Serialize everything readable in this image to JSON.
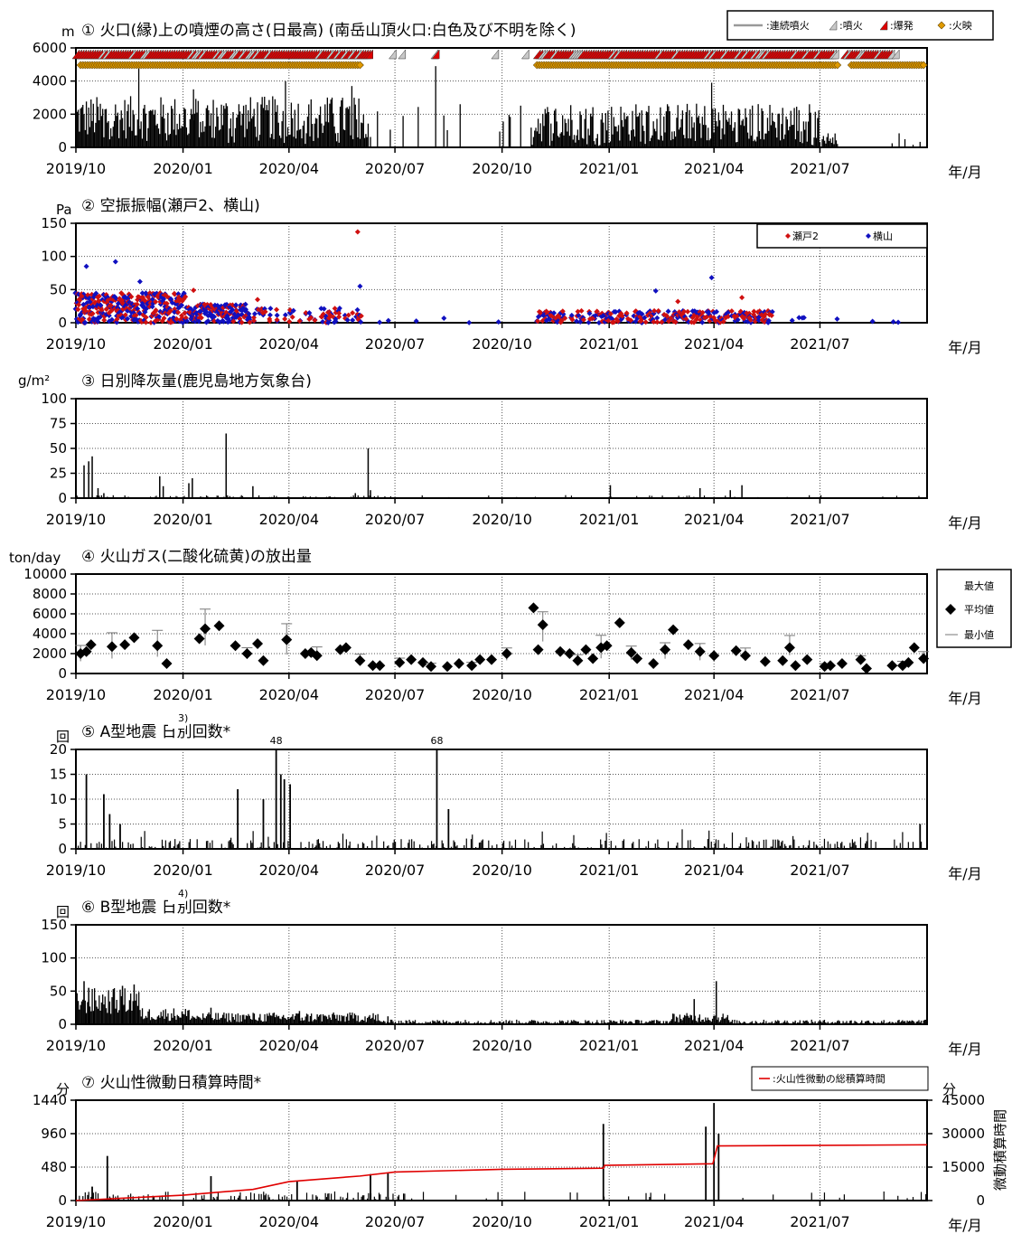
{
  "panels": [
    {
      "title": "① 火口(縁)上の噴煙の高さ(日最高) (南岳山頂火口:白色及び不明を除く)",
      "unit": "m"
    },
    {
      "title": "② 空振振幅(瀬戸2、横山)",
      "unit": "Pa"
    },
    {
      "title": "③ 日別降灰量(鹿児島地方気象台)",
      "unit": "g/m²"
    },
    {
      "title": "④ 火山ガス(二酸化硫黄)の放出量",
      "unit": "ton/day"
    },
    {
      "title": "⑤ A型地震 日別回数*",
      "sup": "3)",
      "unit": "回"
    },
    {
      "title": "⑥ B型地震 日別回数*",
      "sup": "4)",
      "unit": "回"
    },
    {
      "title": "⑦ 火山性微動日積算時間*",
      "unit": "分",
      "unit_right": "分",
      "right_axis_title": "微動積算時間"
    }
  ],
  "x_ticks": [
    "2019/10",
    "2020/01",
    "2020/04",
    "2020/07",
    "2020/10",
    "2021/01",
    "2021/04",
    "2021/07"
  ],
  "x_unit": "年/月",
  "legends": {
    "p1": {
      "continuous": "連続噴火",
      "eruption": "噴火",
      "explosion": "爆発",
      "glow": "火映"
    },
    "p2": {
      "a": "瀬戸2",
      "b": "横山"
    },
    "p4": {
      "max": "最大値",
      "avg": "平均値",
      "min": "最小値"
    },
    "p7": {
      "line": "火山性微動の総積算時間"
    }
  },
  "colors": {
    "bars": "#000000",
    "explosion": "#e00000",
    "glow": "#e09a00",
    "seto": "#d01010",
    "yokoyama": "#1010c0",
    "cumulative": "#e00000"
  },
  "chart_data": [
    {
      "type": "bar",
      "title": "① 火口(縁)上の噴煙の高さ(日最高) (南岳山頂火口:白色及び不明を除く)",
      "ylabel": "m",
      "ylim": [
        0,
        6000
      ],
      "yticks": [
        0,
        2000,
        4000,
        6000
      ],
      "x_range": [
        "2019-10-01",
        "2021-10-01"
      ],
      "series": [
        {
          "name": "火口(縁)上の噴煙の高さ",
          "values": "daily, mostly 1000-3000 m; max ~5000 m (2019-11), ~4900 m (2020-08-05)"
        }
      ],
      "events": [
        "連続噴火",
        "噴火",
        "爆発",
        "火映"
      ]
    },
    {
      "type": "scatter",
      "title": "② 空振振幅(瀬戸2、横山)",
      "ylabel": "Pa",
      "ylim": [
        0,
        150
      ],
      "yticks": [
        0,
        50,
        100,
        150
      ],
      "series": [
        {
          "name": "瀬戸2",
          "points": [
            [
              "2019-10-06",
              40
            ],
            [
              "2019-11-10",
              30
            ],
            [
              "2020-01-10",
              49
            ],
            [
              "2020-03-05",
              35
            ],
            [
              "2020-05-30",
              137
            ],
            [
              "2021-03-01",
              32
            ],
            [
              "2021-04-25",
              38
            ]
          ]
        },
        {
          "name": "横山",
          "points": [
            [
              "2019-10-10",
              85
            ],
            [
              "2019-11-04",
              92
            ],
            [
              "2019-11-25",
              62
            ],
            [
              "2020-06-01",
              55
            ],
            [
              "2021-02-10",
              48
            ],
            [
              "2021-03-30",
              68
            ]
          ]
        }
      ]
    },
    {
      "type": "bar",
      "title": "③ 日別降灰量(鹿児島地方気象台)",
      "ylabel": "g/m²",
      "ylim": [
        0,
        100
      ],
      "yticks": [
        0,
        25,
        50,
        75,
        100
      ],
      "points": [
        [
          "2019-10-08",
          33
        ],
        [
          "2019-10-12",
          37
        ],
        [
          "2019-10-15",
          42
        ],
        [
          "2019-10-20",
          10
        ],
        [
          "2019-10-25",
          5
        ],
        [
          "2019-12-12",
          22
        ],
        [
          "2019-12-15",
          12
        ],
        [
          "2020-01-09",
          20
        ],
        [
          "2020-01-06",
          15
        ],
        [
          "2020-02-07",
          65
        ],
        [
          "2020-03-01",
          12
        ],
        [
          "2020-06-08",
          50
        ],
        [
          "2020-06-10",
          8
        ],
        [
          "2020-05-28",
          5
        ],
        [
          "2021-01-02",
          13
        ],
        [
          "2021-03-20",
          10
        ],
        [
          "2021-04-15",
          8
        ],
        [
          "2021-04-25",
          13
        ]
      ]
    },
    {
      "type": "scatter",
      "title": "④ 火山ガス(二酸化硫黄)の放出量",
      "ylabel": "ton/day",
      "ylim": [
        0,
        10000
      ],
      "yticks": [
        0,
        2000,
        4000,
        6000,
        8000,
        10000
      ],
      "series": [
        {
          "name": "平均値",
          "points": [
            [
              "2019-10-05",
              2000
            ],
            [
              "2019-10-10",
              2200
            ],
            [
              "2019-10-14",
              2900
            ],
            [
              "2019-11-01",
              2700
            ],
            [
              "2019-11-12",
              2900
            ],
            [
              "2019-11-20",
              3600
            ],
            [
              "2019-12-10",
              2800
            ],
            [
              "2019-12-18",
              1000
            ],
            [
              "2020-01-15",
              3500
            ],
            [
              "2020-01-20",
              4500
            ],
            [
              "2020-02-01",
              4800
            ],
            [
              "2020-02-15",
              2800
            ],
            [
              "2020-02-25",
              2000
            ],
            [
              "2020-03-05",
              3000
            ],
            [
              "2020-03-10",
              1300
            ],
            [
              "2020-03-30",
              3400
            ],
            [
              "2020-04-15",
              2000
            ],
            [
              "2020-04-20",
              2100
            ],
            [
              "2020-04-25",
              1800
            ],
            [
              "2020-05-15",
              2400
            ],
            [
              "2020-05-20",
              2600
            ],
            [
              "2020-06-01",
              1300
            ],
            [
              "2020-06-12",
              800
            ],
            [
              "2020-06-18",
              800
            ],
            [
              "2020-07-05",
              1100
            ],
            [
              "2020-07-15",
              1400
            ],
            [
              "2020-07-25",
              1100
            ],
            [
              "2020-08-01",
              700
            ],
            [
              "2020-08-15",
              700
            ],
            [
              "2020-08-25",
              1000
            ],
            [
              "2020-09-05",
              800
            ],
            [
              "2020-09-12",
              1400
            ],
            [
              "2020-09-22",
              1400
            ],
            [
              "2020-10-05",
              2000
            ],
            [
              "2020-10-28",
              6600
            ],
            [
              "2020-11-01",
              2400
            ],
            [
              "2020-11-05",
              4900
            ],
            [
              "2020-11-20",
              2200
            ],
            [
              "2020-11-28",
              2000
            ],
            [
              "2020-12-05",
              1300
            ],
            [
              "2020-12-12",
              2400
            ],
            [
              "2020-12-18",
              1500
            ],
            [
              "2020-12-25",
              2600
            ],
            [
              "2020-12-30",
              2800
            ],
            [
              "2021-01-10",
              5100
            ],
            [
              "2021-01-20",
              2100
            ],
            [
              "2021-01-25",
              1500
            ],
            [
              "2021-02-08",
              1000
            ],
            [
              "2021-02-18",
              2400
            ],
            [
              "2021-02-25",
              4400
            ],
            [
              "2021-03-10",
              2900
            ],
            [
              "2021-03-20",
              2200
            ],
            [
              "2021-04-01",
              1800
            ],
            [
              "2021-04-20",
              2300
            ],
            [
              "2021-04-28",
              1800
            ],
            [
              "2021-05-15",
              1200
            ],
            [
              "2021-05-30",
              1300
            ],
            [
              "2021-06-05",
              2600
            ],
            [
              "2021-06-10",
              800
            ],
            [
              "2021-06-20",
              1400
            ],
            [
              "2021-07-05",
              700
            ],
            [
              "2021-07-10",
              800
            ],
            [
              "2021-07-20",
              1000
            ],
            [
              "2021-08-05",
              1400
            ],
            [
              "2021-08-10",
              500
            ],
            [
              "2021-09-01",
              800
            ],
            [
              "2021-09-10",
              800
            ],
            [
              "2021-09-15",
              1100
            ],
            [
              "2021-09-20",
              2600
            ],
            [
              "2021-09-28",
              1500
            ]
          ]
        }
      ]
    },
    {
      "type": "bar",
      "title": "⑤ A型地震 日別回数*",
      "ylabel": "回",
      "ylim": [
        0,
        20
      ],
      "yticks": [
        0,
        5,
        10,
        15,
        20
      ],
      "annotations": [
        {
          "x": "2020-03-21",
          "label": "48"
        },
        {
          "x": "2020-08-06",
          "label": "68"
        }
      ],
      "points": [
        [
          "2019-10-10",
          15
        ],
        [
          "2019-10-25",
          11
        ],
        [
          "2019-10-30",
          7
        ],
        [
          "2019-11-08",
          5
        ],
        [
          "2020-02-17",
          12
        ],
        [
          "2020-03-10",
          10
        ],
        [
          "2020-03-21",
          20
        ],
        [
          "2020-03-25",
          15
        ],
        [
          "2020-03-28",
          14
        ],
        [
          "2020-04-02",
          13
        ],
        [
          "2020-08-06",
          20
        ],
        [
          "2020-08-16",
          8
        ],
        [
          "2021-09-25",
          5
        ]
      ]
    },
    {
      "type": "bar",
      "title": "⑥ B型地震 日別回数*",
      "ylabel": "回",
      "ylim": [
        0,
        150
      ],
      "yticks": [
        0,
        50,
        100,
        150
      ],
      "points": [
        [
          "2019-10-08",
          65
        ],
        [
          "2019-10-12",
          55
        ],
        [
          "2019-11-10",
          58
        ],
        [
          "2019-11-20",
          60
        ],
        [
          "2020-01-25",
          25
        ],
        [
          "2020-04-10",
          20
        ],
        [
          "2020-06-25",
          12
        ],
        [
          "2021-03-15",
          38
        ],
        [
          "2021-04-03",
          65
        ]
      ]
    },
    {
      "type": "bar",
      "title": "⑦ 火山性微動日積算時間*",
      "ylabel": "分",
      "ylim": [
        0,
        1440
      ],
      "yticks": [
        0,
        480,
        960,
        1440
      ],
      "y2label": "微動積算時間",
      "y2lim": [
        0,
        45000
      ],
      "y2ticks": [
        0,
        15000,
        30000,
        45000
      ],
      "points": [
        [
          "2019-10-28",
          640
        ],
        [
          "2019-10-15",
          200
        ],
        [
          "2020-01-25",
          350
        ],
        [
          "2020-04-08",
          280
        ],
        [
          "2020-06-10",
          380
        ],
        [
          "2020-06-25",
          400
        ],
        [
          "2020-12-27",
          1100
        ],
        [
          "2021-03-25",
          1060
        ],
        [
          "2021-04-01",
          1400
        ],
        [
          "2021-04-05",
          960
        ]
      ],
      "line": {
        "name": "火山性微動の総積算時間",
        "points": [
          [
            "2019-10-01",
            0
          ],
          [
            "2020-01-01",
            2400
          ],
          [
            "2020-03-01",
            5000
          ],
          [
            "2020-04-01",
            8500
          ],
          [
            "2020-06-01",
            11000
          ],
          [
            "2020-07-01",
            12800
          ],
          [
            "2020-10-01",
            14000
          ],
          [
            "2020-12-27",
            14500
          ],
          [
            "2020-12-28",
            15800
          ],
          [
            "2021-03-31",
            16500
          ],
          [
            "2021-04-04",
            24500
          ],
          [
            "2021-10-01",
            25000
          ]
        ]
      }
    }
  ]
}
